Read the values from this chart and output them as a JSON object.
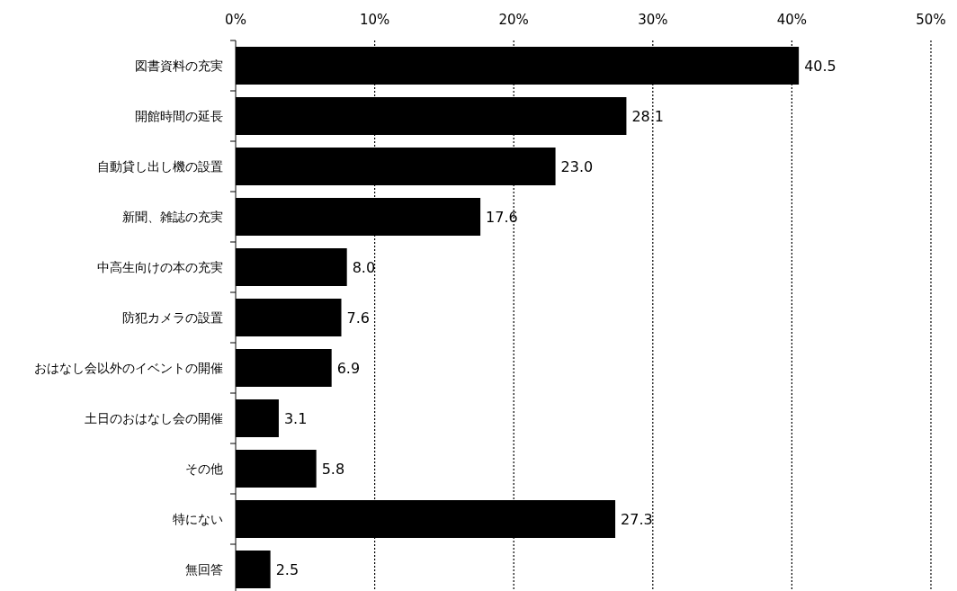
{
  "chart_data": {
    "type": "bar",
    "orientation": "horizontal",
    "categories": [
      "図書資料の充実",
      "開館時間の延長",
      "自動貸し出し機の設置",
      "新聞、雑誌の充実",
      "中高生向けの本の充実",
      "防犯カメラの設置",
      "おはなし会以外のイベントの開催",
      "土日のおはなし会の開催",
      "その他",
      "特にない",
      "無回答"
    ],
    "values": [
      40.5,
      28.1,
      23.0,
      17.6,
      8.0,
      7.6,
      6.9,
      3.1,
      5.8,
      27.3,
      2.5
    ],
    "value_labels": [
      "40.5",
      "28.1",
      "23.0",
      "17.6",
      "8.0",
      "7.6",
      "6.9",
      "3.1",
      "5.8",
      "27.3",
      "2.5"
    ],
    "color": "#000000",
    "xlim": [
      0,
      50
    ],
    "xticks": [
      {
        "value": 0,
        "label": "0%"
      },
      {
        "value": 10,
        "label": "10%"
      },
      {
        "value": 20,
        "label": "20%"
      },
      {
        "value": 30,
        "label": "30%"
      },
      {
        "value": 40,
        "label": "40%"
      },
      {
        "value": 50,
        "label": "50%"
      }
    ],
    "grid": "x"
  }
}
